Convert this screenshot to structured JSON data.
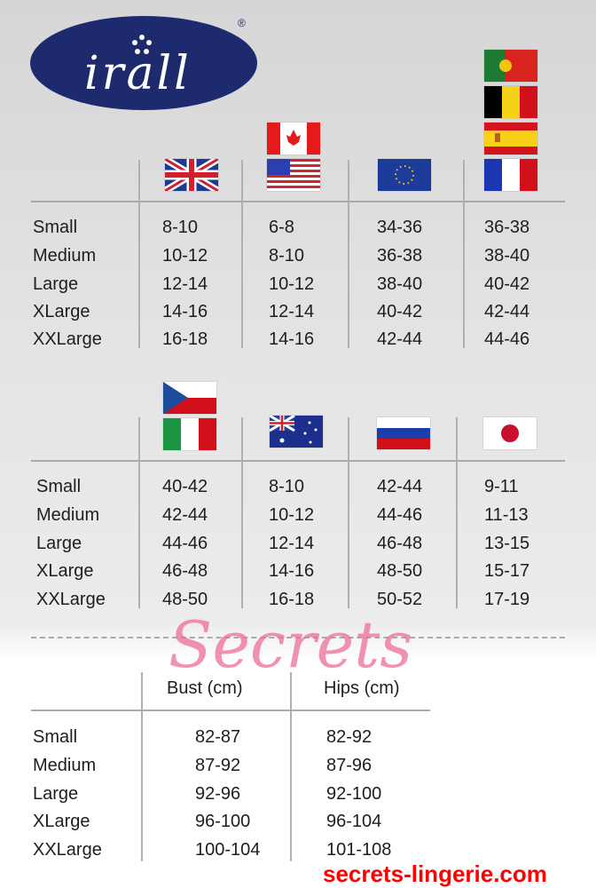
{
  "logo": {
    "text": "irall",
    "mark": "®",
    "color": "#1e2a6e"
  },
  "table1": {
    "columns": [
      {
        "flags": [
          "uk-flag"
        ]
      },
      {
        "flags": [
          "canada-flag",
          "usa-flag"
        ]
      },
      {
        "flags": [
          "eu-flag"
        ]
      },
      {
        "flags": [
          "portugal-flag",
          "belgium-flag",
          "spain-flag",
          "france-flag"
        ]
      }
    ],
    "rows": [
      {
        "label": "Small",
        "values": [
          "8-10",
          "6-8",
          "34-36",
          "36-38"
        ]
      },
      {
        "label": "Medium",
        "values": [
          "10-12",
          "8-10",
          "36-38",
          "38-40"
        ]
      },
      {
        "label": "Large",
        "values": [
          "12-14",
          "10-12",
          "38-40",
          "40-42"
        ]
      },
      {
        "label": "XLarge",
        "values": [
          "14-16",
          "12-14",
          "40-42",
          "42-44"
        ]
      },
      {
        "label": "XXLarge",
        "values": [
          "16-18",
          "14-16",
          "42-44",
          "44-46"
        ]
      }
    ]
  },
  "table2": {
    "columns": [
      {
        "flags": [
          "czech-flag",
          "italy-flag"
        ]
      },
      {
        "flags": [
          "australia-flag"
        ]
      },
      {
        "flags": [
          "russia-flag"
        ]
      },
      {
        "flags": [
          "japan-flag"
        ]
      }
    ],
    "rows": [
      {
        "label": "Small",
        "values": [
          "40-42",
          "8-10",
          "42-44",
          "9-11"
        ]
      },
      {
        "label": "Medium",
        "values": [
          "42-44",
          "10-12",
          "44-46",
          "11-13"
        ]
      },
      {
        "label": "Large",
        "values": [
          "44-46",
          "12-14",
          "46-48",
          "13-15"
        ]
      },
      {
        "label": "XLarge",
        "values": [
          "46-48",
          "14-16",
          "48-50",
          "15-17"
        ]
      },
      {
        "label": "XXLarge",
        "values": [
          "48-50",
          "16-18",
          "50-52",
          "17-19"
        ]
      }
    ]
  },
  "table3": {
    "headers": [
      "Bust (cm)",
      "Hips (cm)"
    ],
    "rows": [
      {
        "label": "Small",
        "values": [
          "82-87",
          "82-92"
        ]
      },
      {
        "label": "Medium",
        "values": [
          "87-92",
          "87-96"
        ]
      },
      {
        "label": "Large",
        "values": [
          "92-96",
          "92-100"
        ]
      },
      {
        "label": "XLarge",
        "values": [
          "96-100",
          "96-104"
        ]
      },
      {
        "label": "XXLarge",
        "values": [
          "100-104",
          "101-108"
        ]
      }
    ]
  },
  "watermark": {
    "script": "Secrets",
    "url": "secrets-lingerie.com"
  }
}
